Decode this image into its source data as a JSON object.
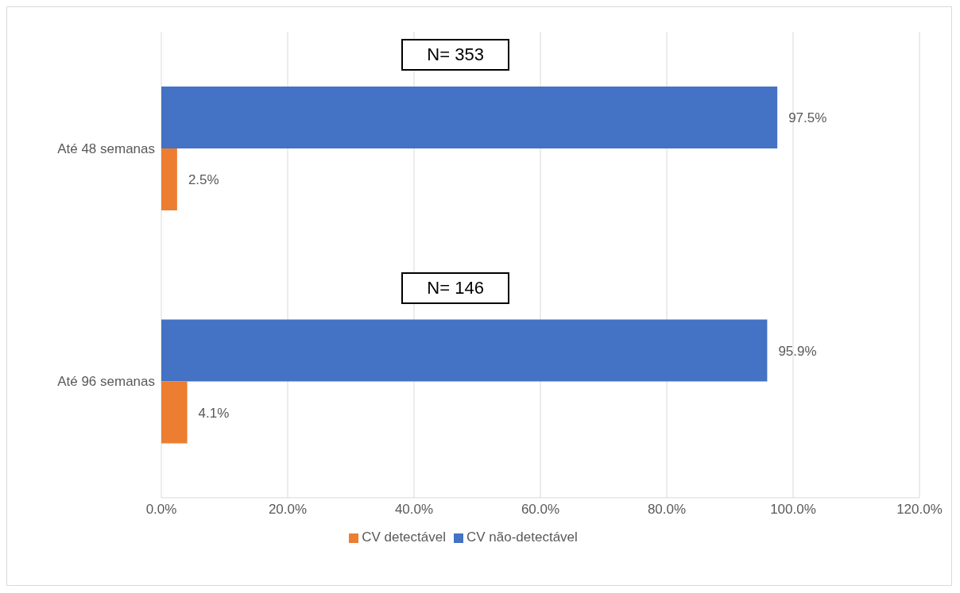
{
  "chart_data": {
    "type": "bar",
    "orientation": "horizontal",
    "categories": [
      "Até 48 semanas",
      "Até 96 semanas"
    ],
    "series": [
      {
        "name": "CV não-detectável",
        "color": "#4472c4",
        "values": [
          97.5,
          95.9
        ],
        "value_labels": [
          "97.5%",
          "95.9%"
        ]
      },
      {
        "name": "CV detectável",
        "color": "#ed7d31",
        "values": [
          2.5,
          4.1
        ],
        "value_labels": [
          "2.5%",
          "4.1%"
        ]
      }
    ],
    "xlim": [
      0,
      120
    ],
    "xticks": [
      {
        "value": 0,
        "label": "0.0%"
      },
      {
        "value": 20,
        "label": "20.0%"
      },
      {
        "value": 40,
        "label": "40.0%"
      },
      {
        "value": 60,
        "label": "60.0%"
      },
      {
        "value": 80,
        "label": "80.0%"
      },
      {
        "value": 100,
        "label": "100.0%"
      },
      {
        "value": 120,
        "label": "120.0%"
      }
    ],
    "annotations": [
      "N= 353",
      "N= 146"
    ],
    "grid": "x",
    "legend": "bottom"
  }
}
